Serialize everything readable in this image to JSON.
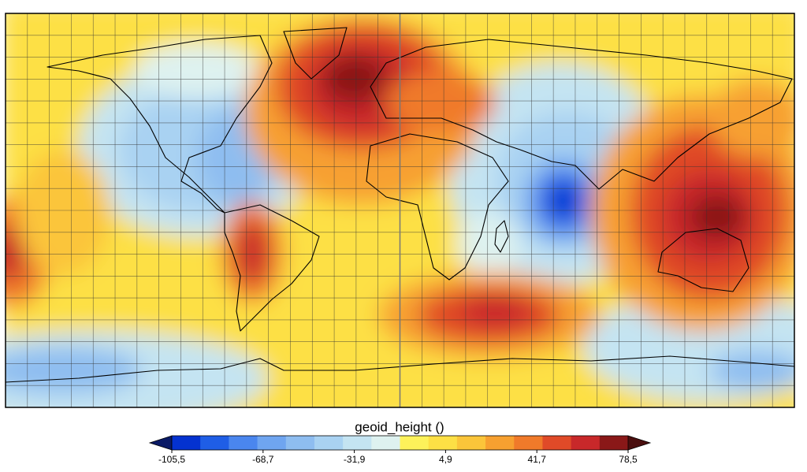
{
  "colorbar": {
    "title": "geoid_height ()",
    "lim": [
      -105.5,
      78.5
    ],
    "ticks": [
      {
        "value": -105.5,
        "label": "-105,5"
      },
      {
        "value": -68.7,
        "label": "-68,7"
      },
      {
        "value": -31.9,
        "label": "-31,9"
      },
      {
        "value": 4.9,
        "label": "4,9"
      },
      {
        "value": 41.7,
        "label": "41,7"
      },
      {
        "value": 78.5,
        "label": "78,5"
      }
    ],
    "colors": [
      "#0432d0",
      "#1f5ee6",
      "#4a86ee",
      "#6fa5f0",
      "#8ebdf0",
      "#a9d2f2",
      "#c4e4f2",
      "#def2f0",
      "#fdf25a",
      "#fde045",
      "#fbc53a",
      "#f7a030",
      "#f07a2a",
      "#e04a28",
      "#c8282a",
      "#8a1818"
    ],
    "under_color": "#0a1a66",
    "over_color": "#4a0e0e"
  }
}
